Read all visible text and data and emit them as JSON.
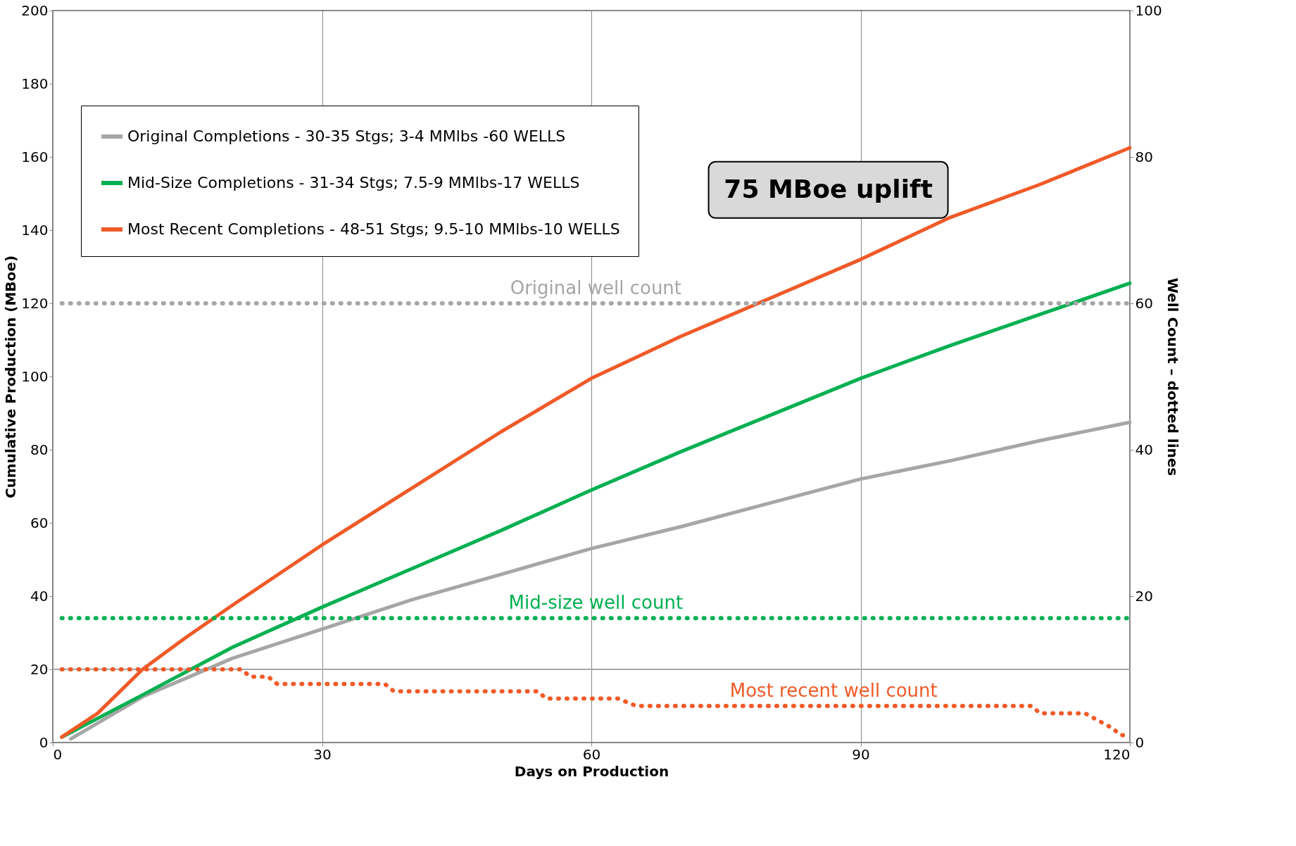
{
  "chart_data": {
    "type": "line",
    "xlabel": "Days on Production",
    "ylabel": "Cumulative Production (MBoe)",
    "y2label": "Well Count – dotted lines",
    "xlim": [
      0,
      120
    ],
    "xticks": [
      0,
      30,
      60,
      90,
      120
    ],
    "ylim": [
      0,
      200
    ],
    "yticks": [
      0,
      20,
      40,
      60,
      80,
      100,
      120,
      140,
      160,
      180,
      200
    ],
    "y2lim": [
      0,
      100
    ],
    "y2ticks": [
      0,
      20,
      40,
      60,
      80,
      100
    ],
    "grid": "x",
    "legend": "top left",
    "series": [
      {
        "name": "Original Completions - 30-35 Stgs; 3-4 MMlbs -60 WELLS",
        "color": "#a6a6a6",
        "x": [
          2,
          10,
          20,
          30,
          40,
          50,
          60,
          70,
          80,
          90,
          100,
          110,
          120
        ],
        "values": [
          1,
          12.5,
          23,
          31,
          39,
          46,
          53,
          59,
          65.5,
          72,
          77,
          82.5,
          87.5
        ]
      },
      {
        "name": "Mid-Size Completions - 31-34 Stgs; 7.5-9 MMlbs-17 WELLS",
        "color": "#00b050",
        "x": [
          1,
          10,
          20,
          30,
          40,
          50,
          60,
          70,
          80,
          90,
          100,
          110,
          120
        ],
        "values": [
          1.5,
          13,
          26,
          37,
          47.5,
          58,
          69,
          79.5,
          89.5,
          99.5,
          108.5,
          117,
          125.5
        ]
      },
      {
        "name": "Most Recent Completions - 48-51 Stgs; 9.5-10 MMlbs-10 WELLS",
        "color": "#f05a28",
        "x": [
          1,
          5,
          10,
          15,
          20,
          30,
          40,
          50,
          60,
          70,
          80,
          90,
          100,
          110,
          120
        ],
        "values": [
          1.5,
          8,
          20,
          29,
          37.5,
          54,
          69.5,
          85,
          99.5,
          111,
          121.5,
          132,
          143.5,
          152.5,
          162.5
        ]
      },
      {
        "name": "Original well count",
        "color": "#a6a6a6",
        "axis": "y2",
        "line_style": "dotted",
        "x": [
          1,
          120
        ],
        "values": [
          60,
          60
        ]
      },
      {
        "name": "Mid-size well count",
        "color": "#00b050",
        "axis": "y2",
        "line_style": "dotted",
        "x": [
          1,
          120
        ],
        "values": [
          17,
          17
        ]
      },
      {
        "name": "Most recent well count",
        "color": "#f05a28",
        "axis": "y2",
        "line_style": "dotted",
        "x": [
          1,
          21,
          22,
          24,
          25,
          37,
          38,
          54,
          55,
          63,
          65,
          109,
          110,
          115,
          116.5,
          118,
          119,
          120
        ],
        "values": [
          10,
          10,
          9,
          9,
          8,
          8,
          7,
          7,
          6,
          6,
          5,
          5,
          4,
          4,
          3,
          2,
          1,
          1
        ]
      }
    ],
    "ref_lines": [
      {
        "axis": "y",
        "value": 20,
        "color": "#a6a6a6"
      }
    ],
    "annotations": [
      "75 MBoe uplift"
    ]
  }
}
